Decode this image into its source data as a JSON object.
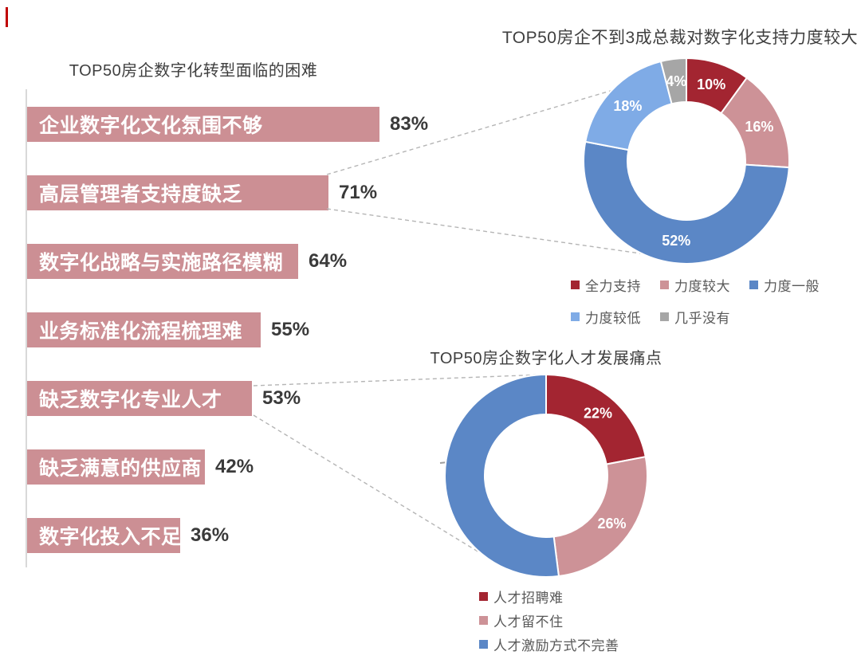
{
  "style": {
    "bar_color": "#cc8f94",
    "title_color": "#3f3f3f",
    "value_text_color": "#3a3a3a",
    "legend_text_color": "#595959",
    "axis_line_color": "#d9d9d9",
    "leader_line_color": "#b5b5b5",
    "red_tick_color": "#c00000"
  },
  "chart_data": [
    {
      "type": "bar",
      "orientation": "horizontal",
      "title": "TOP50房企数字化转型面临的困难",
      "categories": [
        "企业数字化文化氛围不够",
        "高层管理者支持度缺乏",
        "数字化战略与实施路径模糊",
        "业务标准化流程梳理难",
        "缺乏数字化专业人才",
        "缺乏满意的供应商",
        "数字化投入不足"
      ],
      "values": [
        83,
        71,
        64,
        55,
        53,
        42,
        36
      ],
      "value_labels": [
        "83%",
        "71%",
        "64%",
        "55%",
        "53%",
        "42%",
        "36%"
      ],
      "value_suffix": "%",
      "xlim": [
        0,
        100
      ],
      "grid": false,
      "bar_color": "#cc8f94",
      "label_position": "inside-left",
      "value_position": "outside-right"
    },
    {
      "type": "pie",
      "donut": true,
      "title": "TOP50房企不到3成总裁对数字化支持力度较大",
      "labels": [
        "全力支持",
        "力度较大",
        "力度一般",
        "力度较低",
        "几乎没有"
      ],
      "values": [
        10,
        16,
        52,
        18,
        4
      ],
      "slice_labels": [
        "10%",
        "16%",
        "52%",
        "18%",
        "4%"
      ],
      "colors": [
        "#a32531",
        "#cd9297",
        "#5b87c6",
        "#7fabe6",
        "#a6a6a6"
      ],
      "start_angle_deg": 0,
      "direction": "clockwise",
      "legend_position": "bottom"
    },
    {
      "type": "pie",
      "donut": true,
      "title": "TOP50房企数字化人才发展痛点",
      "labels": [
        "人才招聘难",
        "人才留不住",
        "人才激励方式不完善"
      ],
      "values": [
        22,
        26,
        52
      ],
      "slice_labels": [
        "22%",
        "26%",
        ""
      ],
      "colors": [
        "#a32531",
        "#cd9297",
        "#5b87c6"
      ],
      "start_angle_deg": 0,
      "direction": "clockwise",
      "legend_position": "bottom-left"
    }
  ]
}
